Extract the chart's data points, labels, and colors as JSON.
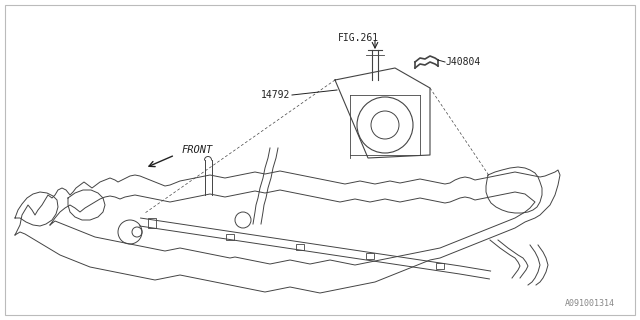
{
  "bg_color": "#ffffff",
  "line_color": "#444444",
  "text_color": "#222222",
  "fig_width": 6.4,
  "fig_height": 3.2,
  "dpi": 100,
  "labels": {
    "fig261": "FIG.261",
    "j40804": "J40804",
    "part14792": "14792",
    "front": "FRONT",
    "part_number": "A091001314"
  }
}
